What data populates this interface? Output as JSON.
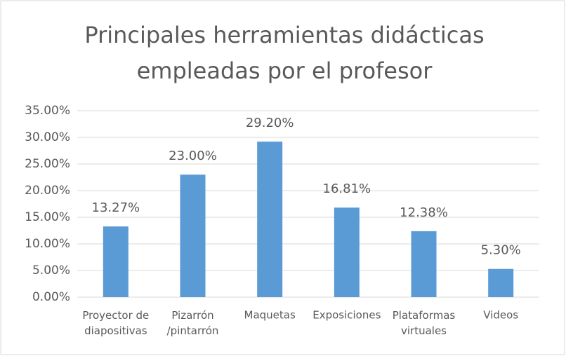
{
  "chart_data": {
    "type": "bar",
    "title": [
      "Principales herramientas didácticas",
      "empleadas por el profesor"
    ],
    "categories": [
      "Proyector de\ndiapositivas",
      "Pizarrón\n/pintarrón",
      "Maquetas",
      "Exposiciones",
      "Plataformas\nvirtuales",
      "Videos"
    ],
    "values": [
      13.27,
      23.0,
      29.2,
      16.81,
      12.38,
      5.3
    ],
    "value_labels": [
      "13.27%",
      "23.00%",
      "29.20%",
      "16.81%",
      "12.38%",
      "5.30%"
    ],
    "color": "#5b9bd5",
    "ylim": [
      0,
      35
    ],
    "yticks": [
      {
        "value": 0,
        "label": "0.00%"
      },
      {
        "value": 5,
        "label": "5.00%"
      },
      {
        "value": 10,
        "label": "10.00%"
      },
      {
        "value": 15,
        "label": "15.00%"
      },
      {
        "value": 20,
        "label": "20.00%"
      },
      {
        "value": 25,
        "label": "25.00%"
      },
      {
        "value": 30,
        "label": "30.00%"
      },
      {
        "value": 35,
        "label": "35.00%"
      }
    ],
    "grid": true
  }
}
